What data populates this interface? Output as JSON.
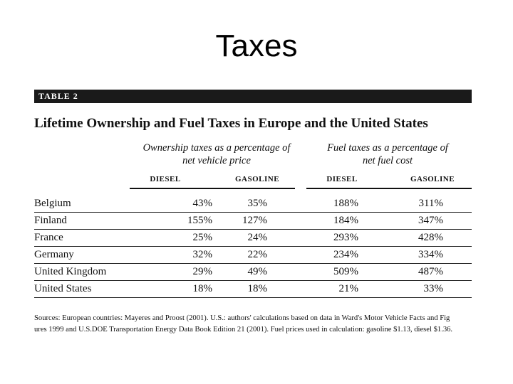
{
  "slide_title": "Taxes",
  "table_label": "TABLE 2",
  "table_title": "Lifetime Ownership and Fuel Taxes in Europe and the United States",
  "group_headers": {
    "ownership_line1": "Ownership taxes as a percentage of",
    "ownership_line2": "net vehicle price",
    "fuel_line1": "Fuel taxes as a percentage of",
    "fuel_line2": "net fuel cost"
  },
  "column_headers": [
    "DIESEL",
    "GASOLINE",
    "DIESEL",
    "GASOLINE"
  ],
  "rows": [
    {
      "country": "Belgium",
      "own_diesel": "43%",
      "own_gasoline": "35%",
      "fuel_diesel": "188%",
      "fuel_gasoline": "311%"
    },
    {
      "country": "Finland",
      "own_diesel": "155%",
      "own_gasoline": "127%",
      "fuel_diesel": "184%",
      "fuel_gasoline": "347%"
    },
    {
      "country": "France",
      "own_diesel": "25%",
      "own_gasoline": "24%",
      "fuel_diesel": "293%",
      "fuel_gasoline": "428%"
    },
    {
      "country": "Germany",
      "own_diesel": "32%",
      "own_gasoline": "22%",
      "fuel_diesel": "234%",
      "fuel_gasoline": "334%"
    },
    {
      "country": "United Kingdom",
      "own_diesel": "29%",
      "own_gasoline": "49%",
      "fuel_diesel": "509%",
      "fuel_gasoline": "487%"
    },
    {
      "country": "United States",
      "own_diesel": "18%",
      "own_gasoline": "18%",
      "fuel_diesel": "21%",
      "fuel_gasoline": "33%"
    }
  ],
  "sources": {
    "line1": "Sources: European countries: Mayeres and Proost (2001). U.S.: authors' calculations based on data in Ward's Motor Vehicle Facts and Fig",
    "line2": "ures 1999 and U.S.DOE Transportation Energy Data Book Edition 21 (2001). Fuel prices used in calculation: gasoline $1.13, diesel $1.36."
  }
}
